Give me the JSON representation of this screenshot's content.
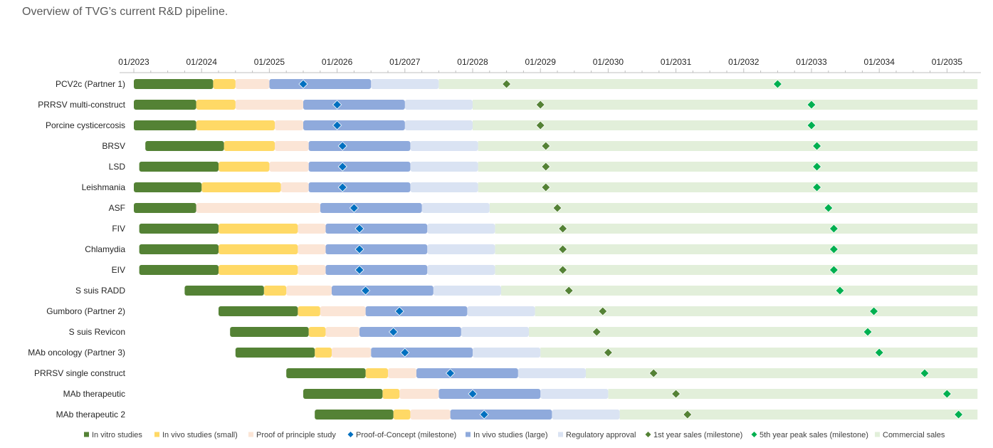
{
  "page": {
    "subtitle": "Overview of TVG’s current R&D pipeline."
  },
  "chart_data": {
    "type": "gantt",
    "title": "",
    "x_ticks": [
      "01/2023",
      "01/2024",
      "01/2025",
      "01/2026",
      "01/2027",
      "01/2028",
      "01/2029",
      "01/2030",
      "01/2031",
      "01/2032",
      "01/2033",
      "01/2034",
      "01/2035"
    ],
    "xlim": [
      2023.0,
      2035.45
    ],
    "phases": [
      {
        "key": "vitro",
        "label": "In vitro studies",
        "color": "#548235",
        "marker": "square"
      },
      {
        "key": "vivo_small",
        "label": "In vivo studies (small)",
        "color": "#ffd966",
        "marker": "square"
      },
      {
        "key": "pop",
        "label": "Proof of principle study",
        "color": "#fbe5d6",
        "marker": "square"
      },
      {
        "key": "poc",
        "label": "Proof-of-Concept (milestone)",
        "color": "#0070c0",
        "marker": "diamond"
      },
      {
        "key": "vivo_large",
        "label": "In vivo studies (large)",
        "color": "#8faadc",
        "marker": "square"
      },
      {
        "key": "reg",
        "label": "Regulatory approval",
        "color": "#dae3f3",
        "marker": "square"
      },
      {
        "key": "sales1",
        "label": "1st year sales (milestone)",
        "color": "#548235",
        "marker": "diamond"
      },
      {
        "key": "sales5",
        "label": "5th year peak sales (milestone)",
        "color": "#00b050",
        "marker": "diamond"
      },
      {
        "key": "commercial",
        "label": "Commercial sales",
        "color": "#e2efda",
        "marker": "square"
      }
    ],
    "projects": [
      {
        "name": "PCV2c (Partner 1)",
        "vitro": [
          2023.0,
          2024.17
        ],
        "vivo_small": [
          2024.17,
          2024.5
        ],
        "pop": [
          2024.5,
          2025.0
        ],
        "vivo_large": [
          2025.0,
          2026.5
        ],
        "poc": 2025.5,
        "reg": [
          2026.5,
          2027.5
        ],
        "commercial": [
          2027.5,
          2035.45
        ],
        "sales1": 2028.5,
        "sales5": 2032.5
      },
      {
        "name": "PRRSV multi-construct",
        "vitro": [
          2023.0,
          2023.92
        ],
        "vivo_small": [
          2023.92,
          2024.5
        ],
        "pop": [
          2024.5,
          2025.5
        ],
        "vivo_large": [
          2025.5,
          2027.0
        ],
        "poc": 2026.0,
        "reg": [
          2027.0,
          2028.0
        ],
        "commercial": [
          2028.0,
          2035.45
        ],
        "sales1": 2029.0,
        "sales5": 2033.0
      },
      {
        "name": "Porcine cysticercosis",
        "vitro": [
          2023.0,
          2023.92
        ],
        "vivo_small": [
          2023.92,
          2025.08
        ],
        "pop": [
          2025.08,
          2025.5
        ],
        "vivo_large": [
          2025.5,
          2027.0
        ],
        "poc": 2026.0,
        "reg": [
          2027.0,
          2028.0
        ],
        "commercial": [
          2028.0,
          2035.45
        ],
        "sales1": 2029.0,
        "sales5": 2033.0
      },
      {
        "name": "BRSV",
        "vitro": [
          2023.17,
          2024.33
        ],
        "vivo_small": [
          2024.33,
          2025.08
        ],
        "pop": [
          2025.08,
          2025.58
        ],
        "vivo_large": [
          2025.58,
          2027.08
        ],
        "poc": 2026.08,
        "reg": [
          2027.08,
          2028.08
        ],
        "commercial": [
          2028.08,
          2035.45
        ],
        "sales1": 2029.08,
        "sales5": 2033.08
      },
      {
        "name": "LSD",
        "vitro": [
          2023.08,
          2024.25
        ],
        "vivo_small": [
          2024.25,
          2025.0
        ],
        "pop": [
          2025.0,
          2025.58
        ],
        "vivo_large": [
          2025.58,
          2027.08
        ],
        "poc": 2026.08,
        "reg": [
          2027.08,
          2028.08
        ],
        "commercial": [
          2028.08,
          2035.45
        ],
        "sales1": 2029.08,
        "sales5": 2033.08
      },
      {
        "name": "Leishmania",
        "vitro": [
          2023.0,
          2024.0
        ],
        "vivo_small": [
          2024.0,
          2025.17
        ],
        "pop": [
          2025.17,
          2025.58
        ],
        "vivo_large": [
          2025.58,
          2027.08
        ],
        "poc": 2026.08,
        "reg": [
          2027.08,
          2028.08
        ],
        "commercial": [
          2028.08,
          2035.45
        ],
        "sales1": 2029.08,
        "sales5": 2033.08
      },
      {
        "name": "ASF",
        "vitro": [
          2023.0,
          2023.92
        ],
        "vivo_small": null,
        "pop": [
          2023.92,
          2025.75
        ],
        "vivo_large": [
          2025.75,
          2027.25
        ],
        "poc": 2026.25,
        "reg": [
          2027.25,
          2028.25
        ],
        "commercial": [
          2028.25,
          2035.45
        ],
        "sales1": 2029.25,
        "sales5": 2033.25
      },
      {
        "name": "FIV",
        "vitro": [
          2023.08,
          2024.25
        ],
        "vivo_small": [
          2024.25,
          2025.42
        ],
        "pop": [
          2025.42,
          2025.83
        ],
        "vivo_large": [
          2025.83,
          2027.33
        ],
        "poc": 2026.33,
        "reg": [
          2027.33,
          2028.33
        ],
        "commercial": [
          2028.33,
          2035.45
        ],
        "sales1": 2029.33,
        "sales5": 2033.33
      },
      {
        "name": "Chlamydia",
        "vitro": [
          2023.08,
          2024.25
        ],
        "vivo_small": [
          2024.25,
          2025.42
        ],
        "pop": [
          2025.42,
          2025.83
        ],
        "vivo_large": [
          2025.83,
          2027.33
        ],
        "poc": 2026.33,
        "reg": [
          2027.33,
          2028.33
        ],
        "commercial": [
          2028.33,
          2035.45
        ],
        "sales1": 2029.33,
        "sales5": 2033.33
      },
      {
        "name": "EIV",
        "vitro": [
          2023.08,
          2024.25
        ],
        "vivo_small": [
          2024.25,
          2025.42
        ],
        "pop": [
          2025.42,
          2025.83
        ],
        "vivo_large": [
          2025.83,
          2027.33
        ],
        "poc": 2026.33,
        "reg": [
          2027.33,
          2028.33
        ],
        "commercial": [
          2028.33,
          2035.45
        ],
        "sales1": 2029.33,
        "sales5": 2033.33
      },
      {
        "name": "S suis RADD",
        "vitro": [
          2023.75,
          2024.92
        ],
        "vivo_small": [
          2024.92,
          2025.25
        ],
        "pop": [
          2025.25,
          2025.92
        ],
        "vivo_large": [
          2025.92,
          2027.42
        ],
        "poc": 2026.42,
        "reg": [
          2027.42,
          2028.42
        ],
        "commercial": [
          2028.42,
          2035.45
        ],
        "sales1": 2029.42,
        "sales5": 2033.42
      },
      {
        "name": "Gumboro (Partner 2)",
        "vitro": [
          2024.25,
          2025.42
        ],
        "vivo_small": [
          2025.42,
          2025.75
        ],
        "pop": [
          2025.75,
          2026.42
        ],
        "vivo_large": [
          2026.42,
          2027.92
        ],
        "poc": 2026.92,
        "reg": [
          2027.92,
          2028.92
        ],
        "commercial": [
          2028.92,
          2035.45
        ],
        "sales1": 2029.92,
        "sales5": 2033.92
      },
      {
        "name": "S suis Revicon",
        "vitro": [
          2024.42,
          2025.58
        ],
        "vivo_small": [
          2025.58,
          2025.83
        ],
        "pop": [
          2025.83,
          2026.33
        ],
        "vivo_large": [
          2026.33,
          2027.83
        ],
        "poc": 2026.83,
        "reg": [
          2027.83,
          2028.83
        ],
        "commercial": [
          2028.83,
          2035.45
        ],
        "sales1": 2029.83,
        "sales5": 2033.83
      },
      {
        "name": "MAb oncology (Partner 3)",
        "vitro": [
          2024.5,
          2025.67
        ],
        "vivo_small": [
          2025.67,
          2025.92
        ],
        "pop": [
          2025.92,
          2026.5
        ],
        "vivo_large": [
          2026.5,
          2028.0
        ],
        "poc": 2027.0,
        "reg": [
          2028.0,
          2029.0
        ],
        "commercial": [
          2029.0,
          2035.45
        ],
        "sales1": 2030.0,
        "sales5": 2034.0
      },
      {
        "name": "PRRSV single construct",
        "vitro": [
          2025.25,
          2026.42
        ],
        "vivo_small": [
          2026.42,
          2026.75
        ],
        "pop": [
          2026.75,
          2027.17
        ],
        "vivo_large": [
          2027.17,
          2028.67
        ],
        "poc": 2027.67,
        "reg": [
          2028.67,
          2029.67
        ],
        "commercial": [
          2029.67,
          2035.45
        ],
        "sales1": 2030.67,
        "sales5": 2034.67
      },
      {
        "name": "MAb therapeutic",
        "vitro": [
          2025.5,
          2026.67
        ],
        "vivo_small": [
          2026.67,
          2026.92
        ],
        "pop": [
          2026.92,
          2027.5
        ],
        "vivo_large": [
          2027.5,
          2029.0
        ],
        "poc": 2028.0,
        "reg": [
          2029.0,
          2030.0
        ],
        "commercial": [
          2030.0,
          2035.45
        ],
        "sales1": 2031.0,
        "sales5": 2035.0
      },
      {
        "name": "MAb therapeutic 2",
        "vitro": [
          2025.67,
          2026.83
        ],
        "vivo_small": [
          2026.83,
          2027.08
        ],
        "pop": [
          2027.08,
          2027.67
        ],
        "vivo_large": [
          2027.67,
          2029.17
        ],
        "poc": 2028.17,
        "reg": [
          2029.17,
          2030.17
        ],
        "commercial": [
          2030.17,
          2035.45
        ],
        "sales1": 2031.17,
        "sales5": 2035.17
      }
    ]
  }
}
